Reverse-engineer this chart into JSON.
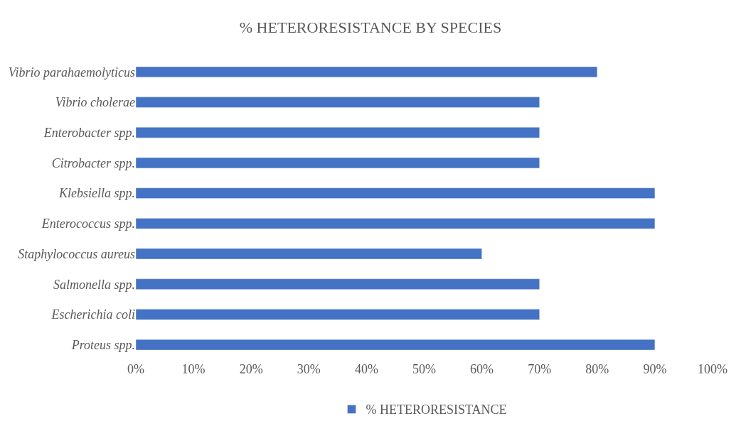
{
  "chart_data": {
    "type": "bar",
    "orientation": "horizontal",
    "title": "% HETERORESISTANCE BY SPECIES",
    "categories": [
      "Vibrio parahaemolyticus",
      "Vibrio cholerae",
      "Enterobacter spp.",
      "Citrobacter spp.",
      "Klebsiella spp.",
      "Enterococcus spp.",
      "Staphylococcus aureus",
      "Salmonella spp.",
      "Escherichia coli",
      "Proteus spp."
    ],
    "series": [
      {
        "name": "% HETERORESISTANCE",
        "color": "#4472c4",
        "values": [
          80,
          70,
          70,
          70,
          90,
          90,
          60,
          70,
          70,
          90
        ]
      }
    ],
    "xlim": [
      0,
      100
    ],
    "xticks": [
      {
        "value": 0,
        "label": "0%"
      },
      {
        "value": 10,
        "label": "10%"
      },
      {
        "value": 20,
        "label": "20%"
      },
      {
        "value": 30,
        "label": "30%"
      },
      {
        "value": 40,
        "label": "40%"
      },
      {
        "value": 50,
        "label": "50%"
      },
      {
        "value": 60,
        "label": "60%"
      },
      {
        "value": 70,
        "label": "70%"
      },
      {
        "value": 80,
        "label": "80%"
      },
      {
        "value": 90,
        "label": "90%"
      },
      {
        "value": 100,
        "label": "100%"
      }
    ],
    "legend": "bottom"
  }
}
